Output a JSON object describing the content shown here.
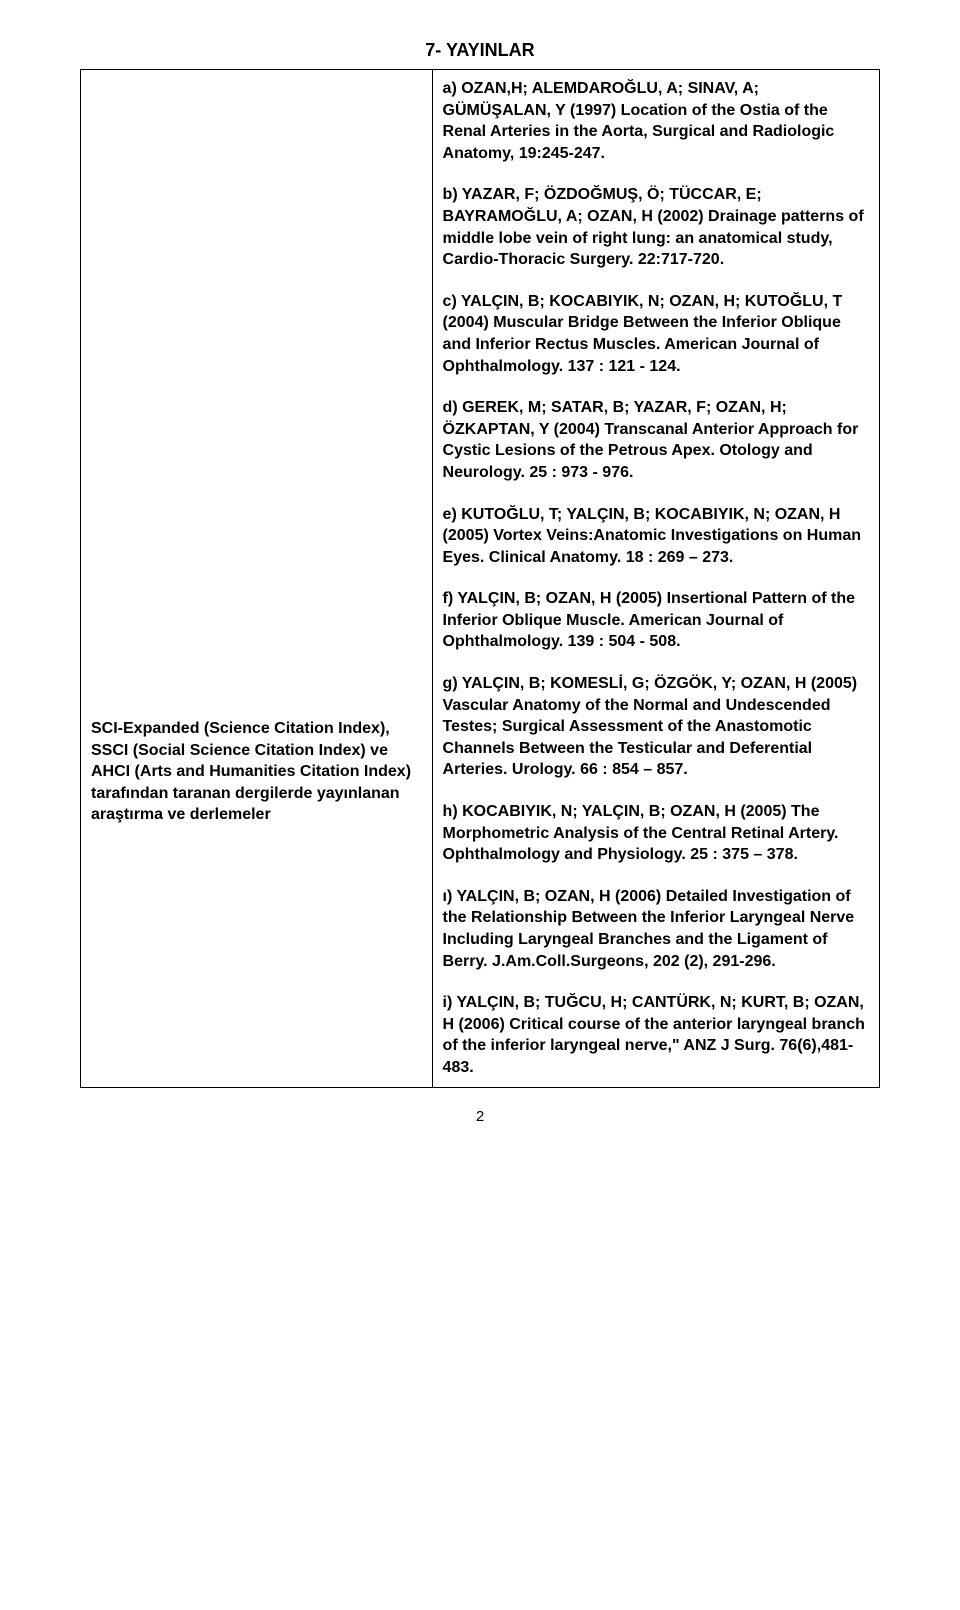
{
  "title": "7- YAYINLAR",
  "leftCell": "SCI-Expanded (Science Citation Index), SSCI (Social Science Citation Index) ve AHCI (Arts and Humanities Citation Index) tarafından taranan dergilerde yayınlanan araştırma ve derlemeler",
  "entries": [
    "a) OZAN,H; ALEMDAROĞLU, A; SINAV, A; GÜMÜŞALAN, Y (1997) Location of the Ostia of the Renal Arteries in the Aorta, Surgical and Radiologic Anatomy, 19:245-247.",
    "b) YAZAR, F; ÖZDOĞMUŞ, Ö; TÜCCAR, E; BAYRAMOĞLU, A; OZAN, H (2002) Drainage patterns of middle lobe vein of right lung: an anatomical study, Cardio-Thoracic Surgery. 22:717-720.",
    "c) YALÇIN, B; KOCABIYIK, N; OZAN, H; KUTOĞLU, T (2004) Muscular Bridge Between the Inferior Oblique and Inferior Rectus Muscles. American Journal of Ophthalmology. 137 : 121 - 124.",
    "d) GEREK, M; SATAR, B; YAZAR, F; OZAN, H; ÖZKAPTAN, Y (2004) Transcanal Anterior Approach for Cystic Lesions of the Petrous Apex. Otology and Neurology. 25 : 973 - 976.",
    "e) KUTOĞLU, T; YALÇIN, B; KOCABIYIK, N; OZAN, H (2005) Vortex Veins:Anatomic Investigations on Human Eyes. Clinical Anatomy. 18 : 269 – 273.",
    "f) YALÇIN, B; OZAN, H (2005) Insertional Pattern of the Inferior Oblique Muscle. American Journal of Ophthalmology.  139 : 504 - 508.",
    "g) YALÇIN, B; KOMESLİ, G; ÖZGÖK, Y; OZAN, H (2005) Vascular Anatomy of the Normal and Undescended Testes; Surgical Assessment of the Anastomotic Channels Between the Testicular and Deferential Arteries. Urology. 66 : 854 – 857.",
    "h) KOCABIYIK, N; YALÇIN, B; OZAN, H (2005) The Morphometric Analysis of the Central Retinal Artery. Ophthalmology and Physiology. 25 : 375 – 378.",
    "ı) YALÇIN, B; OZAN, H (2006) Detailed Investigation of the Relationship Between the Inferior Laryngeal Nerve Including Laryngeal Branches and the Ligament of Berry. J.Am.Coll.Surgeons, 202 (2), 291-296.",
    "i) YALÇIN, B; TUĞCU, H; CANTÜRK, N; KURT, B; OZAN, H (2006) Critical course of the anterior laryngeal branch of the inferior laryngeal nerve,\" ANZ J Surg. 76(6),481-483."
  ],
  "pageNumber": "2"
}
